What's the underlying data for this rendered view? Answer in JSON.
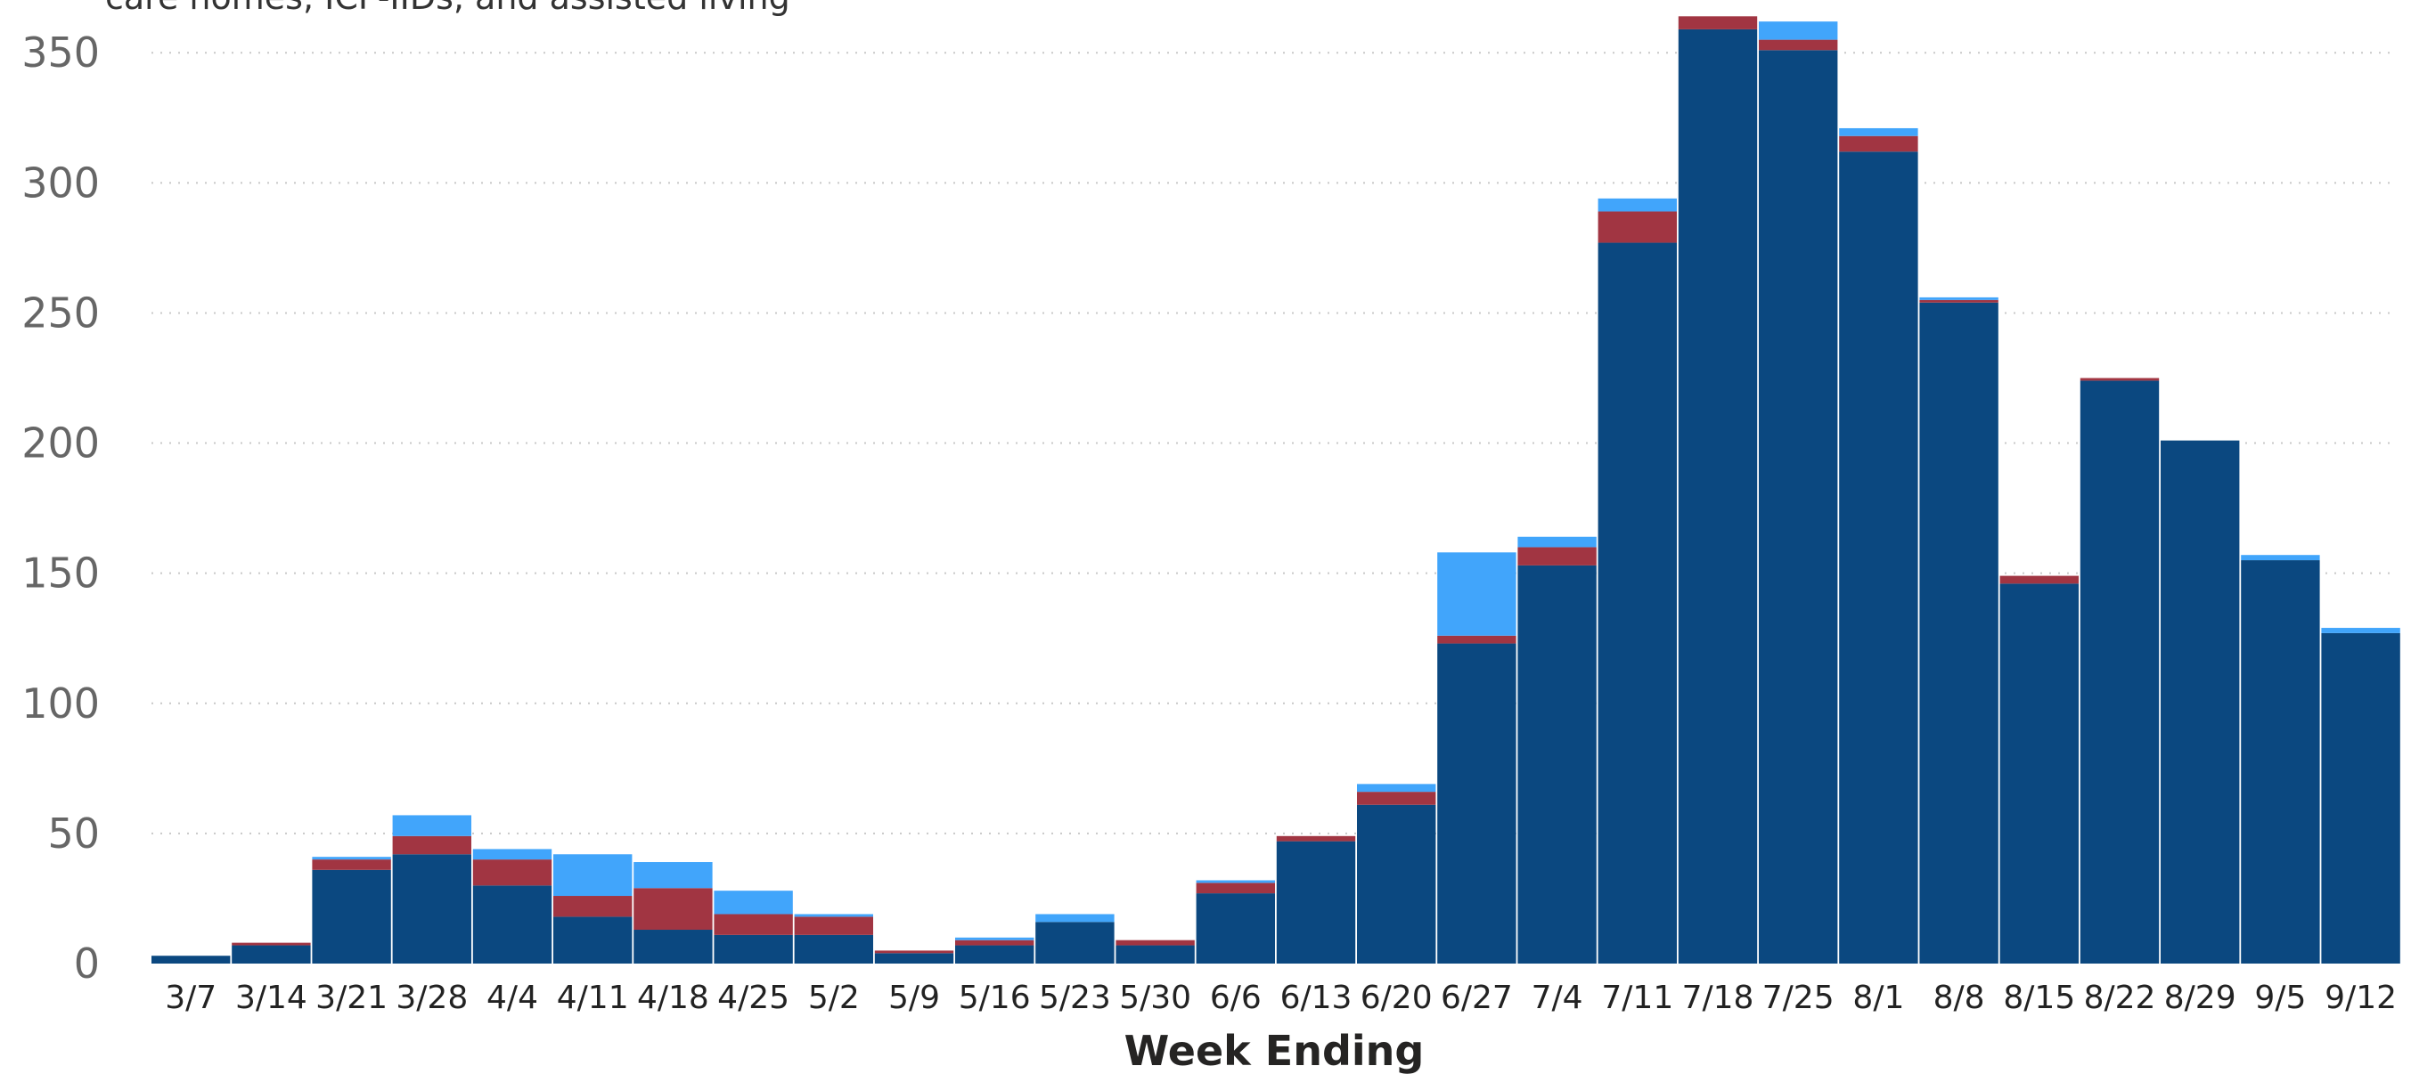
{
  "chart_data": {
    "type": "bar",
    "stacked": true,
    "subtitle_visible": "care homes, ICF-IIDs, and assisted living",
    "xlabel": "Week Ending",
    "ylabel": "",
    "ylim": [
      0,
      360
    ],
    "yticks": [
      0,
      50,
      100,
      150,
      200,
      250,
      300,
      350
    ],
    "grid": true,
    "categories": [
      "3/7",
      "3/14",
      "3/21",
      "3/28",
      "4/4",
      "4/11",
      "4/18",
      "4/25",
      "5/2",
      "5/9",
      "5/16",
      "5/23",
      "5/30",
      "6/6",
      "6/13",
      "6/20",
      "6/27",
      "7/4",
      "7/11",
      "7/18",
      "7/25",
      "8/1",
      "8/8",
      "8/15",
      "8/22",
      "8/29",
      "9/5",
      "9/12"
    ],
    "series": [
      {
        "color": "#0b4880",
        "values": [
          3,
          7,
          36,
          42,
          30,
          18,
          13,
          11,
          11,
          4,
          7,
          16,
          7,
          27,
          47,
          61,
          123,
          153,
          277,
          359,
          351,
          312,
          254,
          146,
          224,
          201,
          155,
          127
        ]
      },
      {
        "color": "#a13542",
        "values": [
          0,
          1,
          4,
          7,
          10,
          8,
          16,
          8,
          7,
          1,
          2,
          0,
          2,
          4,
          2,
          5,
          3,
          7,
          12,
          5,
          4,
          6,
          1,
          3,
          1,
          0,
          0,
          0
        ]
      },
      {
        "color": "#41a5fb",
        "values": [
          0,
          0,
          1,
          8,
          4,
          16,
          10,
          9,
          1,
          0,
          1,
          3,
          0,
          1,
          0,
          3,
          32,
          4,
          5,
          0,
          7,
          3,
          1,
          0,
          0,
          0,
          2,
          2
        ]
      }
    ]
  }
}
